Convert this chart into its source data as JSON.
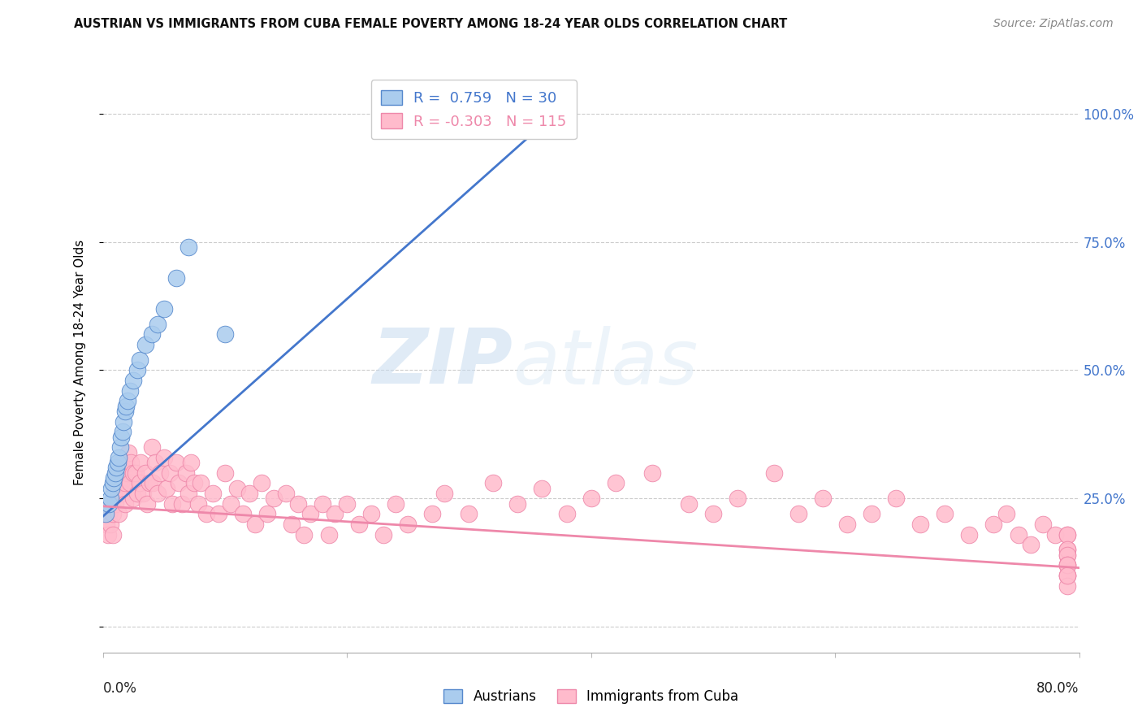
{
  "title": "AUSTRIAN VS IMMIGRANTS FROM CUBA FEMALE POVERTY AMONG 18-24 YEAR OLDS CORRELATION CHART",
  "source": "Source: ZipAtlas.com",
  "ylabel": "Female Poverty Among 18-24 Year Olds",
  "ytick_positions": [
    0.0,
    0.25,
    0.5,
    0.75,
    1.0
  ],
  "ytick_labels": [
    "",
    "25.0%",
    "50.0%",
    "75.0%",
    "100.0%"
  ],
  "xmin": 0.0,
  "xmax": 0.8,
  "ymin": -0.05,
  "ymax": 1.08,
  "r_blue": "0.759",
  "n_blue": "30",
  "r_pink": "-0.303",
  "n_pink": "115",
  "blue_face": "#AACCEE",
  "blue_edge": "#5588CC",
  "pink_face": "#FFBBCC",
  "pink_edge": "#EE88AA",
  "blue_line": "#4477CC",
  "pink_line": "#EE88AA",
  "legend_blue": "Austrians",
  "legend_pink": "Immigrants from Cuba",
  "blue_x": [
    0.002,
    0.005,
    0.006,
    0.007,
    0.008,
    0.009,
    0.01,
    0.011,
    0.012,
    0.013,
    0.014,
    0.015,
    0.016,
    0.017,
    0.018,
    0.019,
    0.02,
    0.022,
    0.025,
    0.028,
    0.03,
    0.035,
    0.04,
    0.045,
    0.05,
    0.06,
    0.07,
    0.1,
    0.28,
    0.29
  ],
  "blue_y": [
    0.22,
    0.24,
    0.25,
    0.27,
    0.28,
    0.29,
    0.3,
    0.31,
    0.32,
    0.33,
    0.35,
    0.37,
    0.38,
    0.4,
    0.42,
    0.43,
    0.44,
    0.46,
    0.48,
    0.5,
    0.52,
    0.55,
    0.57,
    0.59,
    0.62,
    0.68,
    0.74,
    0.57,
    1.0,
    1.0
  ],
  "pink_x": [
    0.003,
    0.004,
    0.005,
    0.006,
    0.007,
    0.008,
    0.008,
    0.009,
    0.01,
    0.01,
    0.011,
    0.012,
    0.013,
    0.013,
    0.014,
    0.015,
    0.015,
    0.016,
    0.017,
    0.018,
    0.018,
    0.019,
    0.02,
    0.021,
    0.022,
    0.023,
    0.025,
    0.025,
    0.027,
    0.028,
    0.03,
    0.031,
    0.033,
    0.035,
    0.036,
    0.038,
    0.04,
    0.041,
    0.043,
    0.045,
    0.047,
    0.05,
    0.052,
    0.055,
    0.057,
    0.06,
    0.062,
    0.065,
    0.068,
    0.07,
    0.072,
    0.075,
    0.078,
    0.08,
    0.085,
    0.09,
    0.095,
    0.1,
    0.105,
    0.11,
    0.115,
    0.12,
    0.125,
    0.13,
    0.135,
    0.14,
    0.15,
    0.155,
    0.16,
    0.165,
    0.17,
    0.18,
    0.185,
    0.19,
    0.2,
    0.21,
    0.22,
    0.23,
    0.24,
    0.25,
    0.27,
    0.28,
    0.3,
    0.32,
    0.34,
    0.36,
    0.38,
    0.4,
    0.42,
    0.45,
    0.48,
    0.5,
    0.52,
    0.55,
    0.57,
    0.59,
    0.61,
    0.63,
    0.65,
    0.67,
    0.69,
    0.71,
    0.73,
    0.74,
    0.75,
    0.76,
    0.77,
    0.78,
    0.79,
    0.79,
    0.79,
    0.79,
    0.79,
    0.79,
    0.79,
    0.79,
    0.79,
    0.79,
    0.79,
    0.79,
    0.79
  ],
  "pink_y": [
    0.2,
    0.18,
    0.22,
    0.2,
    0.24,
    0.22,
    0.18,
    0.26,
    0.28,
    0.24,
    0.3,
    0.26,
    0.28,
    0.22,
    0.3,
    0.28,
    0.32,
    0.26,
    0.3,
    0.28,
    0.24,
    0.32,
    0.3,
    0.34,
    0.28,
    0.32,
    0.3,
    0.25,
    0.3,
    0.26,
    0.28,
    0.32,
    0.26,
    0.3,
    0.24,
    0.28,
    0.35,
    0.28,
    0.32,
    0.26,
    0.3,
    0.33,
    0.27,
    0.3,
    0.24,
    0.32,
    0.28,
    0.24,
    0.3,
    0.26,
    0.32,
    0.28,
    0.24,
    0.28,
    0.22,
    0.26,
    0.22,
    0.3,
    0.24,
    0.27,
    0.22,
    0.26,
    0.2,
    0.28,
    0.22,
    0.25,
    0.26,
    0.2,
    0.24,
    0.18,
    0.22,
    0.24,
    0.18,
    0.22,
    0.24,
    0.2,
    0.22,
    0.18,
    0.24,
    0.2,
    0.22,
    0.26,
    0.22,
    0.28,
    0.24,
    0.27,
    0.22,
    0.25,
    0.28,
    0.3,
    0.24,
    0.22,
    0.25,
    0.3,
    0.22,
    0.25,
    0.2,
    0.22,
    0.25,
    0.2,
    0.22,
    0.18,
    0.2,
    0.22,
    0.18,
    0.16,
    0.2,
    0.18,
    0.15,
    0.18,
    0.14,
    0.18,
    0.15,
    0.12,
    0.1,
    0.14,
    0.12,
    0.1,
    0.08,
    0.12,
    0.1
  ],
  "blue_line_x0": 0.0,
  "blue_line_y0": 0.215,
  "blue_line_x1": 0.38,
  "blue_line_y1": 1.02,
  "pink_line_x0": 0.0,
  "pink_line_y0": 0.235,
  "pink_line_x1": 0.8,
  "pink_line_y1": 0.115
}
